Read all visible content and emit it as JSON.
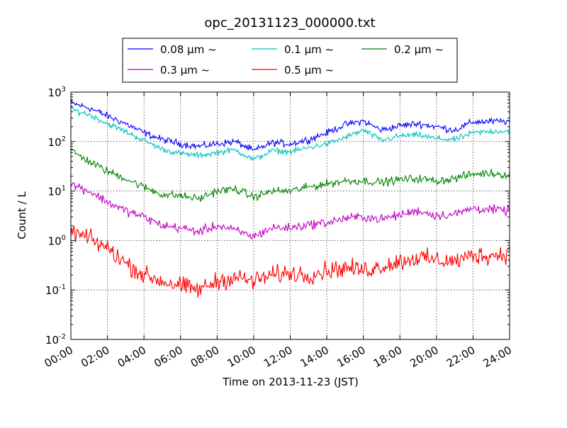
{
  "chart_data": {
    "type": "line",
    "title": "opc_20131123_000000.txt",
    "xlabel": "Time on 2013-11-23 (JST)",
    "ylabel": "Count / L",
    "y_scale": "log",
    "ylim": [
      0.01,
      1000
    ],
    "xlim": [
      "00:00",
      "24:00"
    ],
    "grid": true,
    "legend_position": "top-center, outside plot",
    "x_tick_labels": [
      "00:00",
      "02:00",
      "04:00",
      "06:00",
      "08:00",
      "10:00",
      "12:00",
      "14:00",
      "16:00",
      "18:00",
      "20:00",
      "22:00",
      "24:00"
    ],
    "y_tick_labels": [
      {
        "base": "10",
        "exp": "-2"
      },
      {
        "base": "10",
        "exp": "-1"
      },
      {
        "base": "10",
        "exp": "0"
      },
      {
        "base": "10",
        "exp": "1"
      },
      {
        "base": "10",
        "exp": "2"
      },
      {
        "base": "10",
        "exp": "3"
      }
    ],
    "x_hours": [
      0,
      1,
      2,
      3,
      4,
      5,
      6,
      7,
      8,
      9,
      10,
      11,
      12,
      13,
      14,
      15,
      16,
      17,
      18,
      19,
      20,
      21,
      22,
      23,
      24
    ],
    "series": [
      {
        "name": "0.08 μm ~",
        "color": "#0000ff",
        "noise": 0.06,
        "values": [
          600,
          480,
          330,
          230,
          150,
          110,
          90,
          80,
          90,
          100,
          65,
          95,
          90,
          110,
          150,
          220,
          260,
          170,
          210,
          230,
          200,
          170,
          250,
          255,
          255
        ]
      },
      {
        "name": "0.1 μm ~",
        "color": "#00bfbf",
        "noise": 0.05,
        "values": [
          450,
          350,
          230,
          160,
          105,
          70,
          57,
          52,
          60,
          68,
          43,
          65,
          62,
          75,
          90,
          120,
          170,
          105,
          130,
          135,
          115,
          110,
          150,
          160,
          165
        ]
      },
      {
        "name": "0.2 μm ~",
        "color": "#008000",
        "noise": 0.07,
        "values": [
          65,
          40,
          25,
          18,
          12,
          8.5,
          8,
          7,
          10,
          11,
          7.5,
          10,
          10,
          12,
          14,
          16,
          16,
          15,
          17,
          18,
          16,
          18,
          22,
          23,
          21
        ]
      },
      {
        "name": "0.3 μm ~",
        "color": "#bf00bf",
        "noise": 0.08,
        "values": [
          14,
          10,
          6,
          4,
          3,
          2,
          1.8,
          1.5,
          2,
          1.6,
          1.2,
          1.8,
          1.8,
          2.1,
          2.3,
          2.8,
          3,
          2.7,
          3.3,
          4,
          3.2,
          3.4,
          4.5,
          4.2,
          4
        ]
      },
      {
        "name": "0.5 μm ~",
        "color": "#ff0000",
        "noise": 0.16,
        "values": [
          1.5,
          1.1,
          0.7,
          0.35,
          0.2,
          0.15,
          0.12,
          0.1,
          0.15,
          0.18,
          0.15,
          0.2,
          0.22,
          0.2,
          0.25,
          0.28,
          0.25,
          0.3,
          0.38,
          0.45,
          0.4,
          0.38,
          0.5,
          0.5,
          0.55
        ]
      }
    ]
  }
}
